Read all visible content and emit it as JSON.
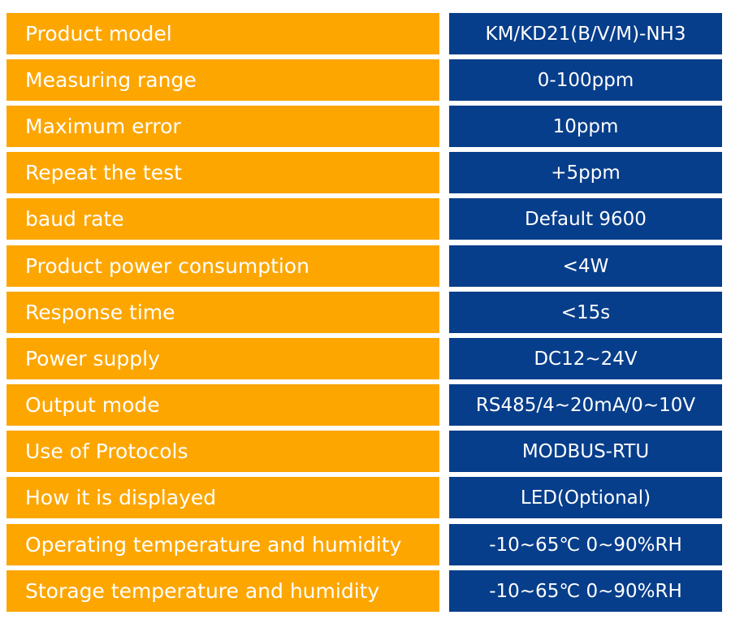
{
  "colors": {
    "label_background": "#fda600",
    "value_background": "#073e8b",
    "text": "#ffffff"
  },
  "specs": [
    {
      "label": "Product model",
      "value": "KM/KD21(B/V/M)-NH3"
    },
    {
      "label": "Measuring range",
      "value": "0-100ppm"
    },
    {
      "label": "Maximum error",
      "value": "10ppm"
    },
    {
      "label": "Repeat the test",
      "value": "+5ppm"
    },
    {
      "label": "baud rate",
      "value": "Default 9600"
    },
    {
      "label": "Product power consumption",
      "value": "<4W"
    },
    {
      "label": "Response time",
      "value": "<15s"
    },
    {
      "label": "Power supply",
      "value": "DC12~24V"
    },
    {
      "label": "Output mode",
      "value": "RS485/4~20mA/0~10V"
    },
    {
      "label": "Use of Protocols",
      "value": "MODBUS-RTU"
    },
    {
      "label": "How it is displayed",
      "value": "LED(Optional)"
    },
    {
      "label": "Operating temperature and humidity",
      "value": "-10~65℃ 0~90%RH"
    },
    {
      "label": "Storage temperature and humidity",
      "value": "-10~65℃ 0~90%RH"
    }
  ]
}
